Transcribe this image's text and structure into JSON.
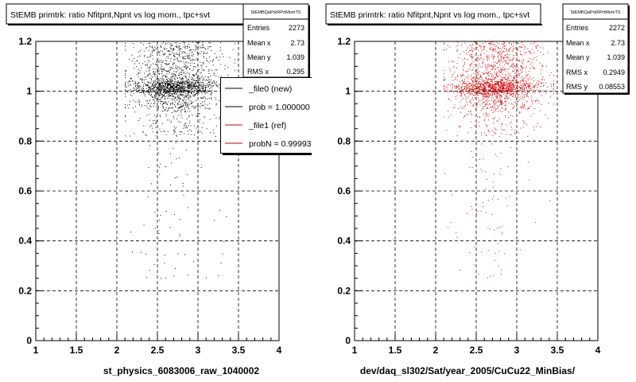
{
  "footer_text": "",
  "chart_data": [
    {
      "type": "scatter",
      "title": "StEMB primtrk: ratio Nfitpnt,Npnt vs log mom., tpc+svt",
      "xlabel": "st_physics_6083006_raw_1040002",
      "ylabel": "",
      "xlim": [
        1,
        4
      ],
      "ylim": [
        0,
        1.2
      ],
      "x_ticks": [
        "1",
        "1.5",
        "2",
        "2.5",
        "3",
        "3.5",
        "4"
      ],
      "y_ticks": [
        "0",
        "0.2",
        "0.4",
        "0.6",
        "0.8",
        "1",
        "1.2"
      ],
      "grid": true,
      "marker_color": "#000000",
      "stats": {
        "name": "StEMBQaPrkRPrtMomTS",
        "rows": [
          {
            "label": "Entries",
            "value": "2273"
          },
          {
            "label": "Mean x",
            "value": "2.73"
          },
          {
            "label": "Mean y",
            "value": "1.039"
          },
          {
            "label": "RMS x",
            "value": "0.295"
          }
        ]
      },
      "legend": {
        "placement": "top-right",
        "entries": [
          {
            "label": "_file0 (new)",
            "color": "#000000"
          },
          {
            "label": "prob = 1.000000",
            "color": "#000000"
          },
          {
            "label": "_file1 (ref)",
            "color": "#cc0000"
          },
          {
            "label": "probN = 0.999931",
            "color": "#cc0000"
          }
        ]
      },
      "distribution": {
        "mean_x": 2.73,
        "rms_x": 0.295,
        "peak_y": 1.0,
        "entries": 2273
      }
    },
    {
      "type": "scatter",
      "title": "StEMB primtrk: ratio Nfitpnt,Npnt vs log mom., tpc+svt",
      "xlabel": "dev/daq_sl302/Sat/year_2005/CuCu22_MinBias/",
      "ylabel": "",
      "xlim": [
        1,
        4
      ],
      "ylim": [
        0,
        1.2
      ],
      "x_ticks": [
        "1",
        "1.5",
        "2",
        "2.5",
        "3",
        "3.5",
        "4"
      ],
      "y_ticks": [
        "0",
        "0.2",
        "0.4",
        "0.6",
        "0.8",
        "1",
        "1.2"
      ],
      "grid": true,
      "marker_color": "#dd0000",
      "stats": {
        "name": "StEMBQaPrkRPrtMomTS",
        "rows": [
          {
            "label": "Entries",
            "value": "2272"
          },
          {
            "label": "Mean x",
            "value": "2.73"
          },
          {
            "label": "Mean y",
            "value": "1.039"
          },
          {
            "label": "RMS x",
            "value": "0.2949"
          },
          {
            "label": "RMS y",
            "value": "0.08553"
          }
        ]
      },
      "distribution": {
        "mean_x": 2.73,
        "rms_x": 0.2949,
        "peak_y": 1.0,
        "entries": 2272
      }
    }
  ]
}
